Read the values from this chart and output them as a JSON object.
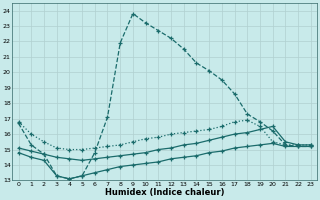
{
  "background_color": "#c8eaea",
  "grid_color": "#b0d0d0",
  "line_color": "#1a6b6b",
  "series": [
    {
      "x": [
        0,
        1,
        2,
        3,
        4,
        5,
        6,
        7,
        8,
        9,
        10,
        11,
        12,
        13,
        14,
        15,
        16,
        17,
        18,
        19,
        20,
        21,
        22,
        23
      ],
      "y": [
        16.7,
        15.3,
        14.7,
        13.3,
        13.1,
        13.3,
        14.8,
        17.1,
        21.9,
        23.8,
        23.2,
        22.7,
        22.2,
        21.5,
        20.6,
        20.1,
        19.5,
        18.6,
        17.3,
        16.8,
        16.2,
        15.3,
        15.2,
        15.2
      ],
      "style": "--",
      "marker": "+"
    },
    {
      "x": [
        0,
        1,
        2,
        3,
        4,
        5,
        6,
        7,
        8,
        9,
        10,
        11,
        12,
        13,
        14,
        15,
        16,
        17,
        18,
        19,
        20,
        21,
        22,
        23
      ],
      "y": [
        16.8,
        16.0,
        15.5,
        15.1,
        15.0,
        15.0,
        15.1,
        15.2,
        15.3,
        15.5,
        15.7,
        15.8,
        16.0,
        16.1,
        16.2,
        16.3,
        16.5,
        16.8,
        16.9,
        16.5,
        15.5,
        15.3,
        15.3,
        15.3
      ],
      "style": ":",
      "marker": "+"
    },
    {
      "x": [
        0,
        1,
        2,
        3,
        4,
        5,
        6,
        7,
        8,
        9,
        10,
        11,
        12,
        13,
        14,
        15,
        16,
        17,
        18,
        19,
        20,
        21,
        22,
        23
      ],
      "y": [
        15.1,
        14.9,
        14.7,
        14.5,
        14.4,
        14.3,
        14.4,
        14.5,
        14.6,
        14.7,
        14.8,
        15.0,
        15.1,
        15.3,
        15.4,
        15.6,
        15.8,
        16.0,
        16.1,
        16.3,
        16.5,
        15.5,
        15.3,
        15.3
      ],
      "style": "-",
      "marker": "+"
    },
    {
      "x": [
        0,
        1,
        2,
        3,
        4,
        5,
        6,
        7,
        8,
        9,
        10,
        11,
        12,
        13,
        14,
        15,
        16,
        17,
        18,
        19,
        20,
        21,
        22,
        23
      ],
      "y": [
        14.8,
        14.5,
        14.3,
        13.3,
        13.1,
        13.3,
        13.5,
        13.7,
        13.9,
        14.0,
        14.1,
        14.2,
        14.4,
        14.5,
        14.6,
        14.8,
        14.9,
        15.1,
        15.2,
        15.3,
        15.4,
        15.2,
        15.2,
        15.2
      ],
      "style": "-",
      "marker": "+"
    }
  ],
  "xlabel": "Humidex (Indice chaleur)",
  "xlim": [
    -0.5,
    23.5
  ],
  "ylim": [
    13.0,
    24.5
  ],
  "yticks": [
    13,
    14,
    15,
    16,
    17,
    18,
    19,
    20,
    21,
    22,
    23,
    24
  ],
  "xticks": [
    0,
    1,
    2,
    3,
    4,
    5,
    6,
    7,
    8,
    9,
    10,
    11,
    12,
    13,
    14,
    15,
    16,
    17,
    18,
    19,
    20,
    21,
    22,
    23
  ]
}
